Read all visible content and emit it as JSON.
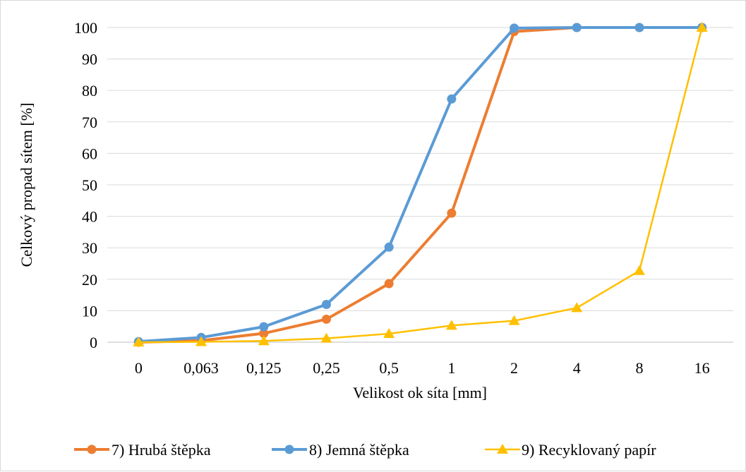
{
  "chart_data": {
    "type": "line",
    "title": "",
    "xlabel": "Velikost ok síta [mm]",
    "ylabel": "Celkový propad sítem [%]",
    "categories": [
      "0",
      "0,063",
      "0,125",
      "0,25",
      "0,5",
      "1",
      "2",
      "4",
      "8",
      "16"
    ],
    "ylim": [
      0,
      100
    ],
    "yticks": [
      0,
      10,
      20,
      30,
      40,
      50,
      60,
      70,
      80,
      90,
      100
    ],
    "grid": true,
    "legend_position": "bottom",
    "series": [
      {
        "name": "7) Hrubá štěpka",
        "color": "#ED7D31",
        "marker": "circle",
        "values": [
          0,
          0.5,
          2.8,
          7.3,
          18.6,
          41,
          98.7,
          100,
          100,
          100
        ]
      },
      {
        "name": "8) Jemná štěpka",
        "color": "#5B9BD5",
        "marker": "circle",
        "values": [
          0.2,
          1.5,
          4.9,
          12,
          30.2,
          77.3,
          99.8,
          100,
          100,
          100
        ]
      },
      {
        "name": "9) Recyklovaný papír",
        "color": "#FFC000",
        "marker": "triangle",
        "values": [
          0,
          0.1,
          0.4,
          1.2,
          2.7,
          5.3,
          6.8,
          10.9,
          22.7,
          100
        ]
      }
    ]
  }
}
